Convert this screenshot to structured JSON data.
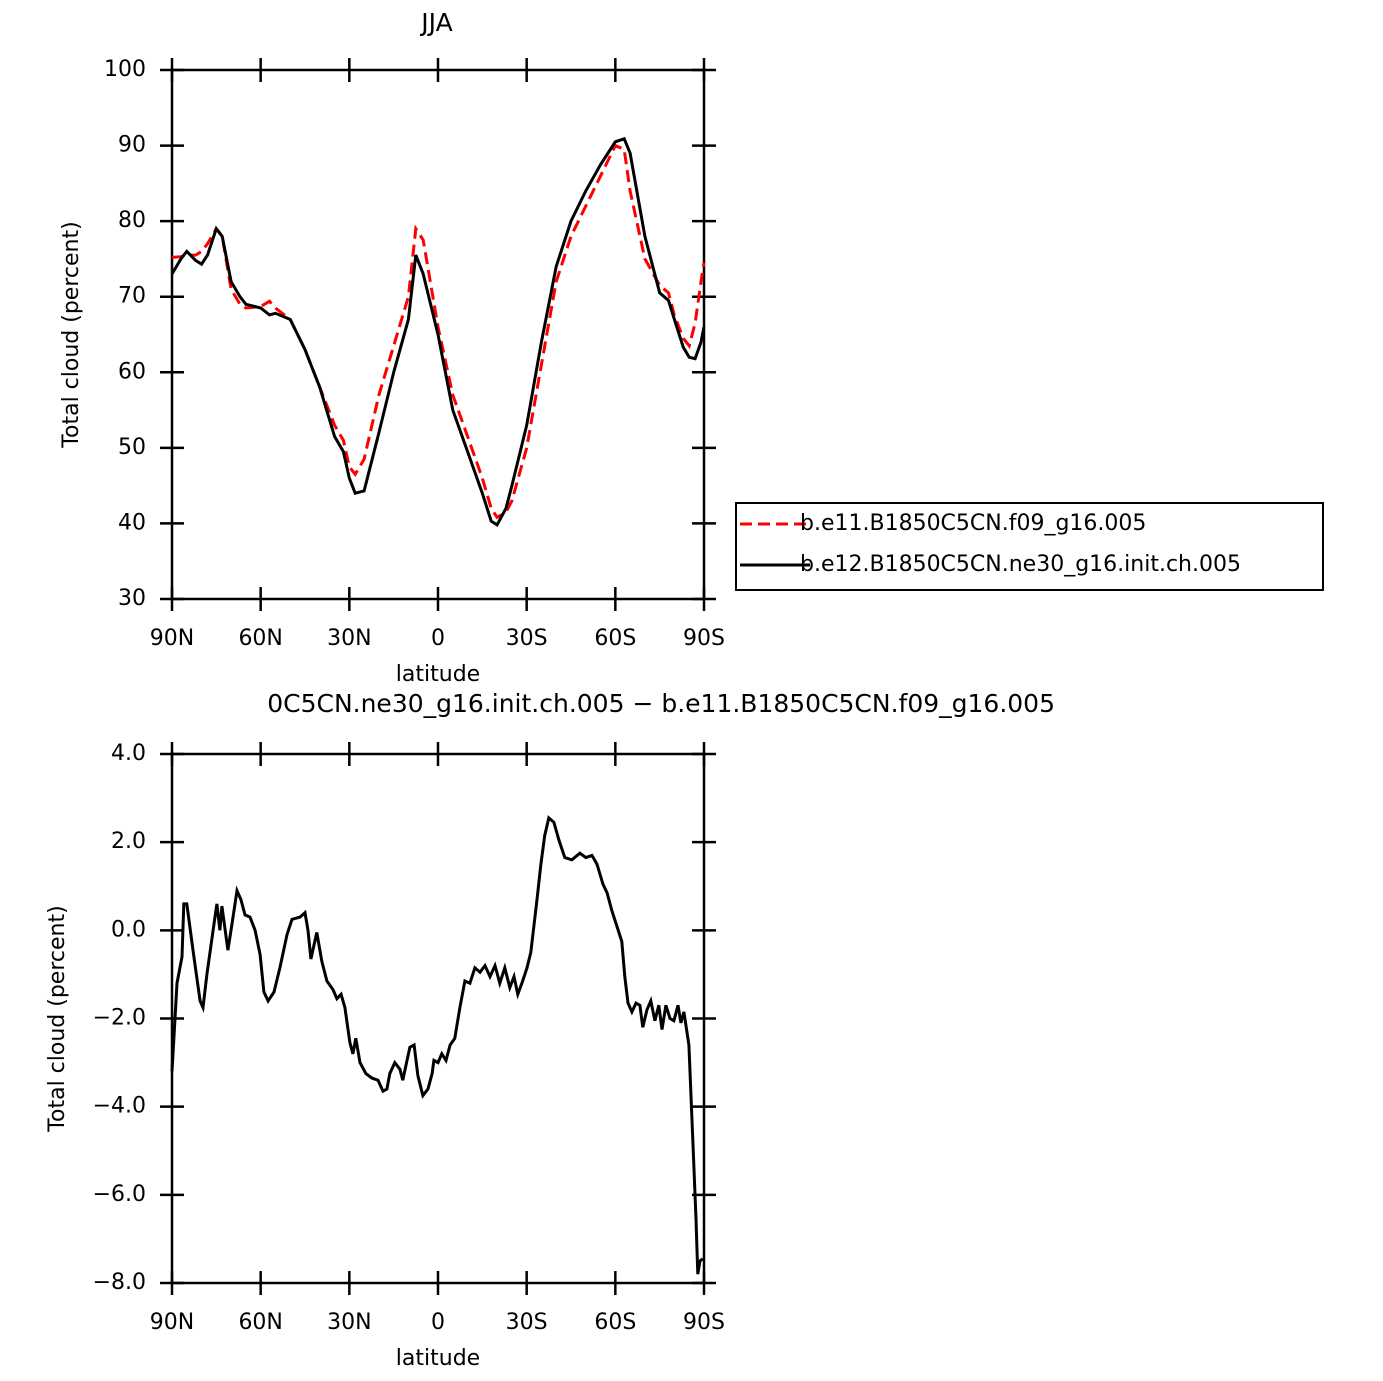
{
  "chart_data": [
    {
      "type": "line",
      "title": "JJA",
      "xlabel": "latitude",
      "ylabel": "Total cloud (percent)",
      "x": [
        90,
        87,
        85,
        82,
        80,
        78,
        75,
        73,
        70,
        67,
        65,
        60,
        57,
        55,
        50,
        45,
        40,
        35,
        32,
        30,
        28,
        25,
        20,
        15,
        10,
        7.5,
        5,
        0,
        -5,
        -10,
        -15,
        -18,
        -20,
        -23,
        -25,
        -30,
        -35,
        -40,
        -45,
        -50,
        -55,
        -60,
        -63,
        -65,
        -70,
        -75,
        -78,
        -80,
        -83,
        -85,
        -87,
        -89,
        -90
      ],
      "xlim": [
        90,
        -90
      ],
      "xticks": [
        {
          "value": 90,
          "label": "90N"
        },
        {
          "value": 60,
          "label": "60N"
        },
        {
          "value": 30,
          "label": "30N"
        },
        0,
        {
          "value": -30,
          "label": "30S"
        },
        {
          "value": -60,
          "label": "60S"
        },
        {
          "value": -90,
          "label": "90S"
        }
      ],
      "ylim": [
        30,
        100
      ],
      "yticks": [
        30,
        40,
        50,
        60,
        70,
        80,
        90,
        100
      ],
      "legend": "outside right",
      "series": [
        {
          "name": "b.e11.B1850C5CN.f09_g16.005",
          "color": "#ff0000",
          "dash": "dashed",
          "values": [
            75.2,
            75.3,
            75.5,
            75.5,
            76,
            77,
            79,
            78,
            71,
            69,
            68.5,
            68.7,
            69.4,
            68.5,
            67,
            63,
            58,
            53,
            51,
            47.5,
            46.5,
            48.5,
            57,
            63.5,
            70,
            79,
            77.5,
            66,
            57,
            51.5,
            46,
            42,
            40.8,
            41.5,
            43,
            50,
            61,
            72,
            78,
            82,
            86,
            90,
            89.5,
            84,
            75,
            71.5,
            70.5,
            67.5,
            64.5,
            63.5,
            66.5,
            72,
            74.5
          ]
        },
        {
          "name": "b.e12.B1850C5CN.ne30_g16.init.ch.005",
          "color": "#000000",
          "dash": "solid",
          "values": [
            73,
            75,
            76,
            74.8,
            74.3,
            75.5,
            79,
            78,
            72,
            70,
            69,
            68.5,
            67.6,
            67.8,
            67,
            63,
            58,
            51.5,
            49.5,
            46,
            44,
            44.3,
            52,
            60,
            67,
            75.5,
            73,
            65,
            55,
            49.5,
            44,
            40.3,
            39.8,
            42,
            45,
            53,
            64,
            74,
            80,
            84,
            87.5,
            90.5,
            90.9,
            89,
            78,
            70.5,
            69.5,
            67,
            63.3,
            62,
            61.8,
            64,
            66
          ]
        }
      ]
    },
    {
      "type": "line",
      "title": "0C5CN.ne30_g16.init.ch.005 − b.e11.B1850C5CN.f09_g16.005",
      "xlabel": "latitude",
      "ylabel": "Total cloud (percent)",
      "x": [
        90,
        88.3,
        86.6,
        86,
        85,
        82.6,
        80.5,
        79.5,
        78.2,
        76.1,
        74.8,
        73.8,
        73.1,
        71.1,
        69.8,
        68,
        66.7,
        65.3,
        63.6,
        61.9,
        60.2,
        58.9,
        57.5,
        55.5,
        53.5,
        51.1,
        49.4,
        46.7,
        45,
        44,
        43,
        41,
        39.3,
        37.6,
        35.5,
        34.2,
        32.8,
        31.5,
        29.8,
        28.8,
        27.8,
        26.4,
        24.4,
        22.4,
        20.3,
        18.6,
        17.3,
        16.3,
        14.6,
        12.9,
        11.9,
        10.5,
        9.5,
        8.1,
        6.8,
        5.1,
        3.4,
        2,
        1.4,
        0,
        -1.3,
        -2.7,
        -4.1,
        -5.7,
        -7.4,
        -9.1,
        -10.8,
        -12.5,
        -14.2,
        -15.9,
        -17.6,
        -19.3,
        -20.9,
        -22.6,
        -24.3,
        -25.7,
        -27,
        -28.4,
        -30.1,
        -31.4,
        -33.5,
        -34.8,
        -36.1,
        -37.5,
        -39.2,
        -40.9,
        -42.9,
        -45.3,
        -48,
        -50,
        -52.1,
        -53.8,
        -55.8,
        -57.2,
        -58.8,
        -60.5,
        -62.2,
        -63.2,
        -64.3,
        -65.6,
        -67,
        -68.3,
        -69.3,
        -70.7,
        -72,
        -73.4,
        -74.7,
        -75.8,
        -77.1,
        -78.5,
        -79.8,
        -81.2,
        -82.2,
        -83.2,
        -84.9,
        -86.2,
        -87.3,
        -87.9,
        -88.6,
        -89.6
      ],
      "xlim": [
        90,
        -90
      ],
      "xticks": [
        {
          "value": 90,
          "label": "90N"
        },
        {
          "value": 60,
          "label": "60N"
        },
        {
          "value": 30,
          "label": "30N"
        },
        0,
        {
          "value": -30,
          "label": "30S"
        },
        {
          "value": -60,
          "label": "60S"
        },
        {
          "value": -90,
          "label": "90S"
        }
      ],
      "ylim": [
        -8,
        4
      ],
      "yticks": [
        {
          "value": -8,
          "label": "−8.0"
        },
        {
          "value": -6,
          "label": "−6.0"
        },
        {
          "value": -4,
          "label": "−4.0"
        },
        {
          "value": -2,
          "label": "−2.0"
        },
        {
          "value": 0,
          "label": "0.0"
        },
        {
          "value": 2,
          "label": "2.0"
        },
        {
          "value": 4,
          "label": "4.0"
        }
      ],
      "series": [
        {
          "color": "#000000",
          "dash": "solid",
          "values": [
            -3.2,
            -1.2,
            -0.6,
            0.6,
            0.6,
            -0.6,
            -1.6,
            -1.75,
            -1,
            0,
            0.6,
            0,
            0.55,
            -0.45,
            0.1,
            0.9,
            0.7,
            0.35,
            0.3,
            0,
            -0.55,
            -1.4,
            -1.6,
            -1.4,
            -0.85,
            -0.1,
            0.25,
            0.3,
            0.4,
            0,
            -0.65,
            -0.05,
            -0.7,
            -1.15,
            -1.35,
            -1.55,
            -1.45,
            -1.75,
            -2.55,
            -2.8,
            -2.45,
            -3,
            -3.25,
            -3.35,
            -3.4,
            -3.65,
            -3.6,
            -3.25,
            -3,
            -3.15,
            -3.4,
            -2.95,
            -2.65,
            -2.6,
            -3.3,
            -3.75,
            -3.6,
            -3.25,
            -2.95,
            -3,
            -2.8,
            -2.95,
            -2.6,
            -2.45,
            -1.75,
            -1.15,
            -1.2,
            -0.85,
            -0.95,
            -0.8,
            -1.05,
            -0.8,
            -1.2,
            -0.85,
            -1.3,
            -1.05,
            -1.45,
            -1.2,
            -0.85,
            -0.5,
            0.7,
            1.5,
            2.15,
            2.55,
            2.45,
            2.05,
            1.65,
            1.6,
            1.75,
            1.65,
            1.7,
            1.5,
            1.05,
            0.85,
            0.45,
            0.1,
            -0.25,
            -1.05,
            -1.65,
            -1.85,
            -1.65,
            -1.7,
            -2.2,
            -1.8,
            -1.6,
            -2.05,
            -1.7,
            -2.25,
            -1.7,
            -2,
            -2.05,
            -1.7,
            -2.1,
            -1.85,
            -2.6,
            -4.75,
            -6.55,
            -7.8,
            -7.5,
            -7.45
          ]
        }
      ]
    }
  ]
}
